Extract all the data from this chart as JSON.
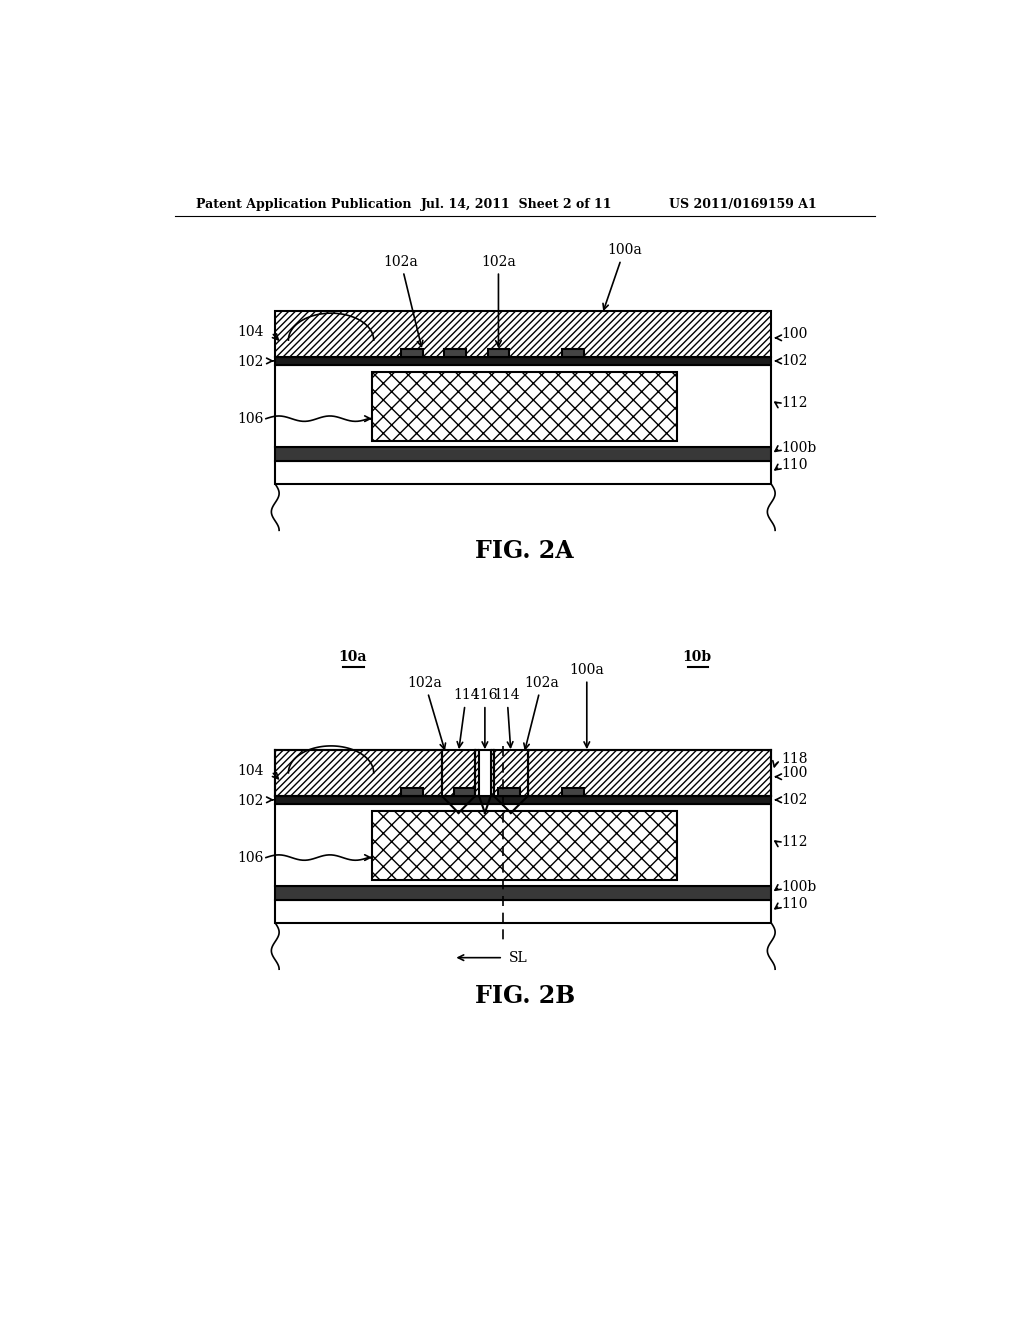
{
  "bg_color": "#ffffff",
  "header_left": "Patent Application Publication",
  "header_mid": "Jul. 14, 2011  Sheet 2 of 11",
  "header_right": "US 2011/0169159 A1",
  "fig2a_label": "FIG. 2A",
  "fig2b_label": "FIG. 2B"
}
